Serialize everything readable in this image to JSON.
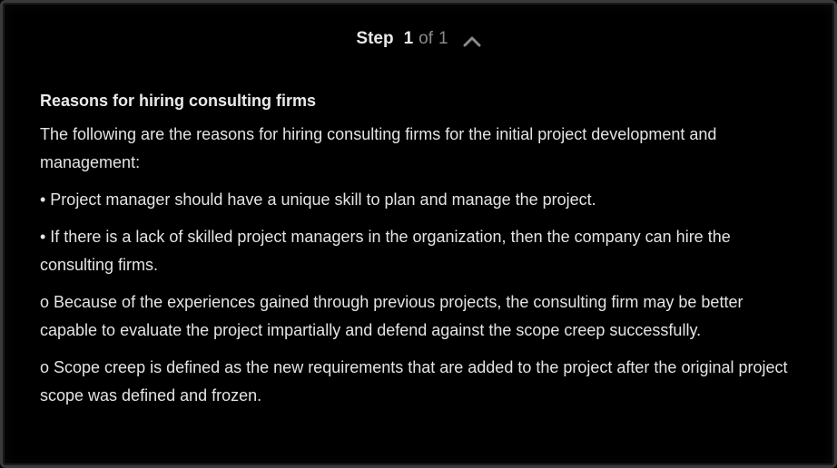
{
  "step": {
    "word": "Step",
    "current": "1",
    "of": "of",
    "total": "1"
  },
  "content": {
    "heading": "Reasons for hiring consulting firms",
    "paragraphs": [
      "The following are the reasons for hiring consulting firms for the initial project development and management:",
      "• Project manager should have a unique skill to plan and manage the project.",
      "• If there is a lack of skilled project managers in the organization, then the company can hire the consulting firms.",
      "o Because of the experiences gained through previous projects, the consulting firm may be better capable to evaluate the project impartially and defend against the scope creep successfully.",
      "o Scope creep is defined as the new requirements that are added to the project after the original project scope was defined and frozen."
    ]
  },
  "icons": {
    "collapse": "chevron-up-icon"
  },
  "colors": {
    "background": "#000000",
    "text": "#e6e6e6",
    "muted": "#8a8a8a",
    "border": "#3a3a3a"
  }
}
